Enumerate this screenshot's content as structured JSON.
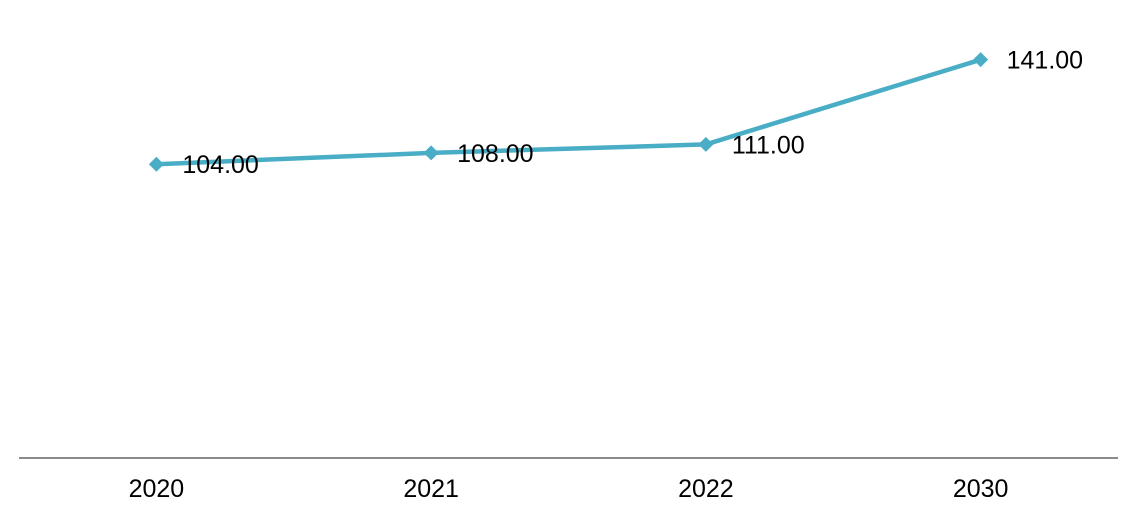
{
  "chart_data": {
    "type": "line",
    "title": "",
    "xlabel": "",
    "ylabel": "",
    "categories": [
      "2020",
      "2021",
      "2022",
      "2030"
    ],
    "values": [
      104,
      108,
      111,
      141
    ],
    "data_labels": [
      "104.00",
      "108.00",
      "111.00",
      "141.00"
    ],
    "data_label_position": "right",
    "ylim": [
      0,
      160
    ],
    "grid": false,
    "legend": "none",
    "marker": "diamond",
    "colors": {
      "line": "#49ADC5",
      "marker": "#49ADC5",
      "axis_line": "#8B8B8B",
      "label_text": "#000000",
      "background": "#FFFFFF"
    }
  }
}
